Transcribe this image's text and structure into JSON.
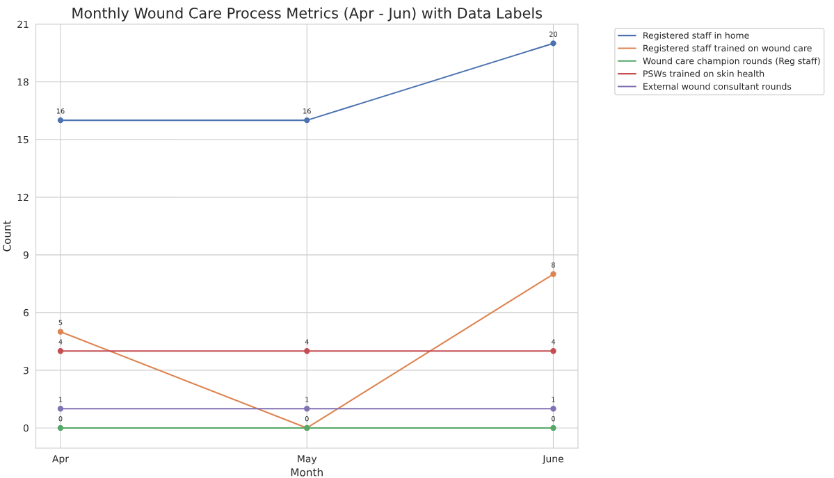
{
  "chart_data": {
    "type": "line",
    "title": "Monthly Wound Care Process Metrics (Apr - Jun) with Data Labels",
    "xlabel": "Month",
    "ylabel": "Count",
    "categories": [
      "Apr",
      "May",
      "June"
    ],
    "series": [
      {
        "name": "Registered staff in home",
        "color": "#4c72b0",
        "values": [
          16,
          16,
          20
        ]
      },
      {
        "name": "Registered staff trained on wound care",
        "color": "#dd8452",
        "values": [
          5,
          0,
          8
        ]
      },
      {
        "name": "Wound care champion rounds (Reg staff)",
        "color": "#55a868",
        "values": [
          0,
          0,
          0
        ],
        "value_labels": [
          "0",
          null,
          "0"
        ]
      },
      {
        "name": "PSWs trained on skin health",
        "color": "#c44e52",
        "values": [
          4,
          4,
          4
        ]
      },
      {
        "name": "External wound consultant rounds",
        "color": "#8172b3",
        "values": [
          1,
          1,
          1
        ]
      }
    ],
    "ylim": [
      -1.05,
      21
    ],
    "yticks": [
      0,
      3,
      6,
      9,
      12,
      15,
      18,
      21
    ],
    "grid": true,
    "legend": "top right",
    "marker": "circle",
    "line_style": "solid",
    "data_labels": true
  }
}
